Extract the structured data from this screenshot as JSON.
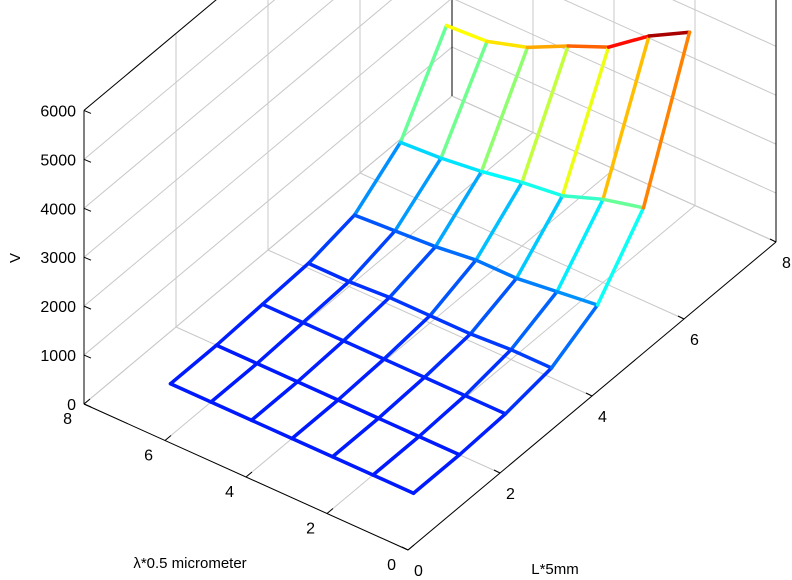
{
  "chart_data": {
    "type": "surface",
    "title": "",
    "xlabel": "L*5mm",
    "ylabel": "λ*0.5 micrometer",
    "zlabel": "V",
    "xlim": [
      0,
      8
    ],
    "ylim": [
      0,
      8
    ],
    "zlim": [
      0,
      6000
    ],
    "x_ticks": [
      "0",
      "2",
      "4",
      "6",
      "8"
    ],
    "y_ticks": [
      "0",
      "2",
      "4",
      "6",
      "8"
    ],
    "z_ticks": [
      "0",
      "1000",
      "2000",
      "3000",
      "4000",
      "5000",
      "6000"
    ],
    "grid": true,
    "colormap": "jet",
    "x": [
      1,
      2,
      3,
      4,
      5,
      6,
      7
    ],
    "y": [
      1,
      2,
      3,
      4,
      5,
      6,
      7
    ],
    "z": [
      [
        0,
        0,
        0,
        0,
        0,
        0,
        0
      ],
      [
        0,
        0,
        0,
        0,
        0,
        0,
        0
      ],
      [
        50,
        50,
        50,
        50,
        50,
        50,
        50
      ],
      [
        200,
        200,
        150,
        150,
        150,
        100,
        100
      ],
      [
        700,
        600,
        500,
        500,
        400,
        350,
        300
      ],
      [
        1900,
        1700,
        1400,
        1300,
        1150,
        1050,
        1000
      ],
      [
        4700,
        4250,
        3650,
        3300,
        2900,
        2650,
        2600
      ]
    ]
  }
}
